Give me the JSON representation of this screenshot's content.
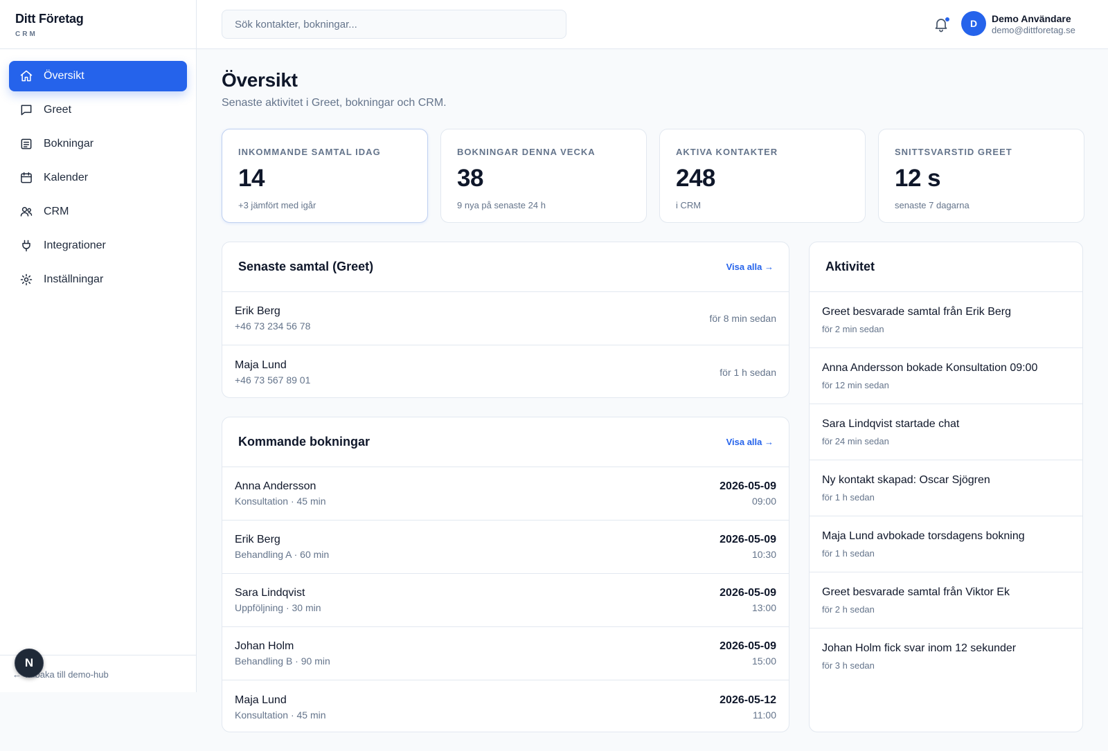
{
  "brand": {
    "name": "Ditt Företag",
    "sub": "CRM"
  },
  "nav": [
    {
      "label": "Översikt",
      "icon": "home-icon",
      "active": true
    },
    {
      "label": "Greet",
      "icon": "chat-icon",
      "active": false
    },
    {
      "label": "Bokningar",
      "icon": "list-icon",
      "active": false
    },
    {
      "label": "Kalender",
      "icon": "calendar-icon",
      "active": false
    },
    {
      "label": "CRM",
      "icon": "users-icon",
      "active": false
    },
    {
      "label": "Integrationer",
      "icon": "plug-icon",
      "active": false
    },
    {
      "label": "Inställningar",
      "icon": "gear-icon",
      "active": false
    }
  ],
  "footer": {
    "back_label": "← Tillbaka till demo-hub",
    "badge": "N"
  },
  "header": {
    "search_placeholder": "Sök kontakter, bokningar...",
    "user_initial": "D",
    "user_name": "Demo Användare",
    "user_email": "demo@dittforetag.se"
  },
  "page": {
    "title": "Översikt",
    "subtitle": "Senaste aktivitet i Greet, bokningar och CRM."
  },
  "stats": [
    {
      "label": "INKOMMANDE SAMTAL IDAG",
      "value": "14",
      "note": "+3 jämfört med igår"
    },
    {
      "label": "BOKNINGAR DENNA VECKA",
      "value": "38",
      "note": "9 nya på senaste 24 h"
    },
    {
      "label": "AKTIVA KONTAKTER",
      "value": "248",
      "note": "i CRM"
    },
    {
      "label": "SNITTSVARSTID GREET",
      "value": "12 s",
      "note": "senaste 7 dagarna"
    }
  ],
  "calls": {
    "title": "Senaste samtal (Greet)",
    "link": "Visa alla →",
    "rows": [
      {
        "name": "Erik Berg",
        "phone": "+46 73 234 56 78",
        "time": "för 8 min sedan"
      },
      {
        "name": "Maja Lund",
        "phone": "+46 73 567 89 01",
        "time": "för 1 h sedan"
      }
    ]
  },
  "bookings": {
    "title": "Kommande bokningar",
    "link": "Visa alla →",
    "rows": [
      {
        "name": "Anna Andersson",
        "service": "Konsultation · 45 min",
        "date": "2026-05-09",
        "time": "09:00"
      },
      {
        "name": "Erik Berg",
        "service": "Behandling A · 60 min",
        "date": "2026-05-09",
        "time": "10:30"
      },
      {
        "name": "Sara Lindqvist",
        "service": "Uppföljning · 30 min",
        "date": "2026-05-09",
        "time": "13:00"
      },
      {
        "name": "Johan Holm",
        "service": "Behandling B · 90 min",
        "date": "2026-05-09",
        "time": "15:00"
      },
      {
        "name": "Maja Lund",
        "service": "Konsultation · 45 min",
        "date": "2026-05-12",
        "time": "11:00"
      }
    ]
  },
  "activity": {
    "title": "Aktivitet",
    "items": [
      {
        "text": "Greet besvarade samtal från Erik Berg",
        "time": "för 2 min sedan"
      },
      {
        "text": "Anna Andersson bokade Konsultation 09:00",
        "time": "för 12 min sedan"
      },
      {
        "text": "Sara Lindqvist startade chat",
        "time": "för 24 min sedan"
      },
      {
        "text": "Ny kontakt skapad: Oscar Sjögren",
        "time": "för 1 h sedan"
      },
      {
        "text": "Maja Lund avbokade torsdagens bokning",
        "time": "för 1 h sedan"
      },
      {
        "text": "Greet besvarade samtal från Viktor Ek",
        "time": "för 2 h sedan"
      },
      {
        "text": "Johan Holm fick svar inom 12 sekunder",
        "time": "för 3 h sedan"
      }
    ]
  },
  "colors": {
    "accent": "#2563eb",
    "text": "#0f172a",
    "muted": "#64748b",
    "border": "#e2e8f0",
    "background": "#f8fafc"
  }
}
